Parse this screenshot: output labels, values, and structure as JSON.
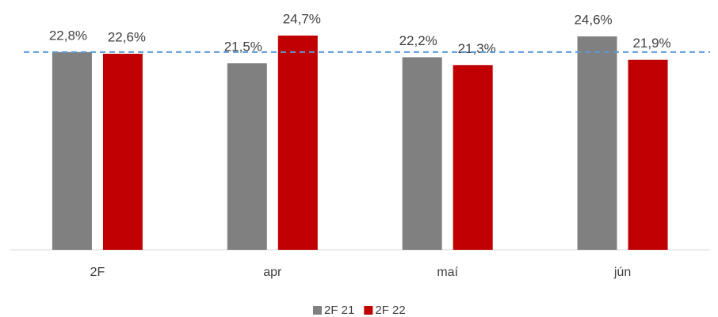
{
  "chart_data": {
    "type": "bar",
    "categories": [
      "2F",
      "apr",
      "maí",
      "jún"
    ],
    "series": [
      {
        "name": "2F 21",
        "color": "#808080",
        "values": [
          22.8,
          21.5,
          22.2,
          24.6
        ],
        "value_labels": [
          "22,8%",
          "21,5%",
          "22,2%",
          "24,6%"
        ]
      },
      {
        "name": "2F 22",
        "color": "#c00000",
        "values": [
          22.6,
          24.7,
          21.3,
          21.9
        ],
        "value_labels": [
          "22,6%",
          "24,7%",
          "21,3%",
          "21,9%"
        ]
      }
    ],
    "reference_value": 22.8,
    "ylim": [
      0,
      28.8
    ]
  }
}
